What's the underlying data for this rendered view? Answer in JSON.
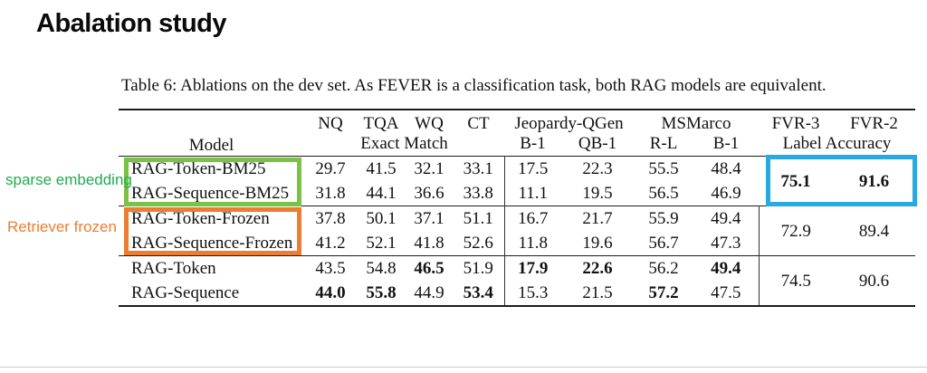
{
  "slide": {
    "title": "Abalation study"
  },
  "caption": "Table 6: Ablations on the dev set. As FEVER is a classification task, both RAG models are equivalent.",
  "annotations": {
    "sparse_label": "sparse embedding",
    "frozen_label": "Retriever frozen",
    "colors": {
      "green_text": "#22ab4f",
      "green_box": "#7bc143",
      "orange": "#ed7d31",
      "blue_box": "#27a9e1"
    }
  },
  "table": {
    "header": {
      "model": "Model",
      "em_cols": [
        "NQ",
        "TQA",
        "WQ",
        "CT"
      ],
      "em_label": "Exact Match",
      "jeopardy_label": "Jeopardy-QGen",
      "jeopardy_cols": [
        "B-1",
        "QB-1"
      ],
      "msmarco_label": "MSMarco",
      "msmarco_cols": [
        "R-L",
        "B-1"
      ],
      "fvr_cols": [
        "FVR-3",
        "FVR-2"
      ],
      "fvr_label": "Label Accuracy"
    },
    "groups": [
      {
        "rows": [
          {
            "model": "RAG-Token-BM25",
            "cells": [
              {
                "v": "29.7",
                "b": false
              },
              {
                "v": "41.5",
                "b": false
              },
              {
                "v": "32.1",
                "b": false
              },
              {
                "v": "33.1",
                "b": false
              },
              {
                "v": "17.5",
                "b": false
              },
              {
                "v": "22.3",
                "b": false
              },
              {
                "v": "55.5",
                "b": false
              },
              {
                "v": "48.4",
                "b": false
              }
            ]
          },
          {
            "model": "RAG-Sequence-BM25",
            "cells": [
              {
                "v": "31.8",
                "b": false
              },
              {
                "v": "44.1",
                "b": false
              },
              {
                "v": "36.6",
                "b": false
              },
              {
                "v": "33.8",
                "b": false
              },
              {
                "v": "11.1",
                "b": false
              },
              {
                "v": "19.5",
                "b": false
              },
              {
                "v": "56.5",
                "b": false
              },
              {
                "v": "46.9",
                "b": false
              }
            ]
          }
        ],
        "fvr3": {
          "v": "75.1",
          "b": true
        },
        "fvr2": {
          "v": "91.6",
          "b": true
        },
        "fvr_divider": false
      },
      {
        "rows": [
          {
            "model": "RAG-Token-Frozen",
            "cells": [
              {
                "v": "37.8",
                "b": false
              },
              {
                "v": "50.1",
                "b": false
              },
              {
                "v": "37.1",
                "b": false
              },
              {
                "v": "51.1",
                "b": false
              },
              {
                "v": "16.7",
                "b": false
              },
              {
                "v": "21.7",
                "b": false
              },
              {
                "v": "55.9",
                "b": false
              },
              {
                "v": "49.4",
                "b": false
              }
            ]
          },
          {
            "model": "RAG-Sequence-Frozen",
            "cells": [
              {
                "v": "41.2",
                "b": false
              },
              {
                "v": "52.1",
                "b": false
              },
              {
                "v": "41.8",
                "b": false
              },
              {
                "v": "52.6",
                "b": false
              },
              {
                "v": "11.8",
                "b": false
              },
              {
                "v": "19.6",
                "b": false
              },
              {
                "v": "56.7",
                "b": false
              },
              {
                "v": "47.3",
                "b": false
              }
            ]
          }
        ],
        "fvr3": {
          "v": "72.9",
          "b": false
        },
        "fvr2": {
          "v": "89.4",
          "b": false
        },
        "fvr_divider": true
      },
      {
        "rows": [
          {
            "model": "RAG-Token",
            "cells": [
              {
                "v": "43.5",
                "b": false
              },
              {
                "v": "54.8",
                "b": false
              },
              {
                "v": "46.5",
                "b": true
              },
              {
                "v": "51.9",
                "b": false
              },
              {
                "v": "17.9",
                "b": true
              },
              {
                "v": "22.6",
                "b": true
              },
              {
                "v": "56.2",
                "b": false
              },
              {
                "v": "49.4",
                "b": true
              }
            ]
          },
          {
            "model": "RAG-Sequence",
            "cells": [
              {
                "v": "44.0",
                "b": true
              },
              {
                "v": "55.8",
                "b": true
              },
              {
                "v": "44.9",
                "b": false
              },
              {
                "v": "53.4",
                "b": true
              },
              {
                "v": "15.3",
                "b": false
              },
              {
                "v": "21.5",
                "b": false
              },
              {
                "v": "57.2",
                "b": true
              },
              {
                "v": "47.5",
                "b": false
              }
            ]
          }
        ],
        "fvr3": {
          "v": "74.5",
          "b": false
        },
        "fvr2": {
          "v": "90.6",
          "b": false
        },
        "fvr_divider": true
      }
    ]
  }
}
